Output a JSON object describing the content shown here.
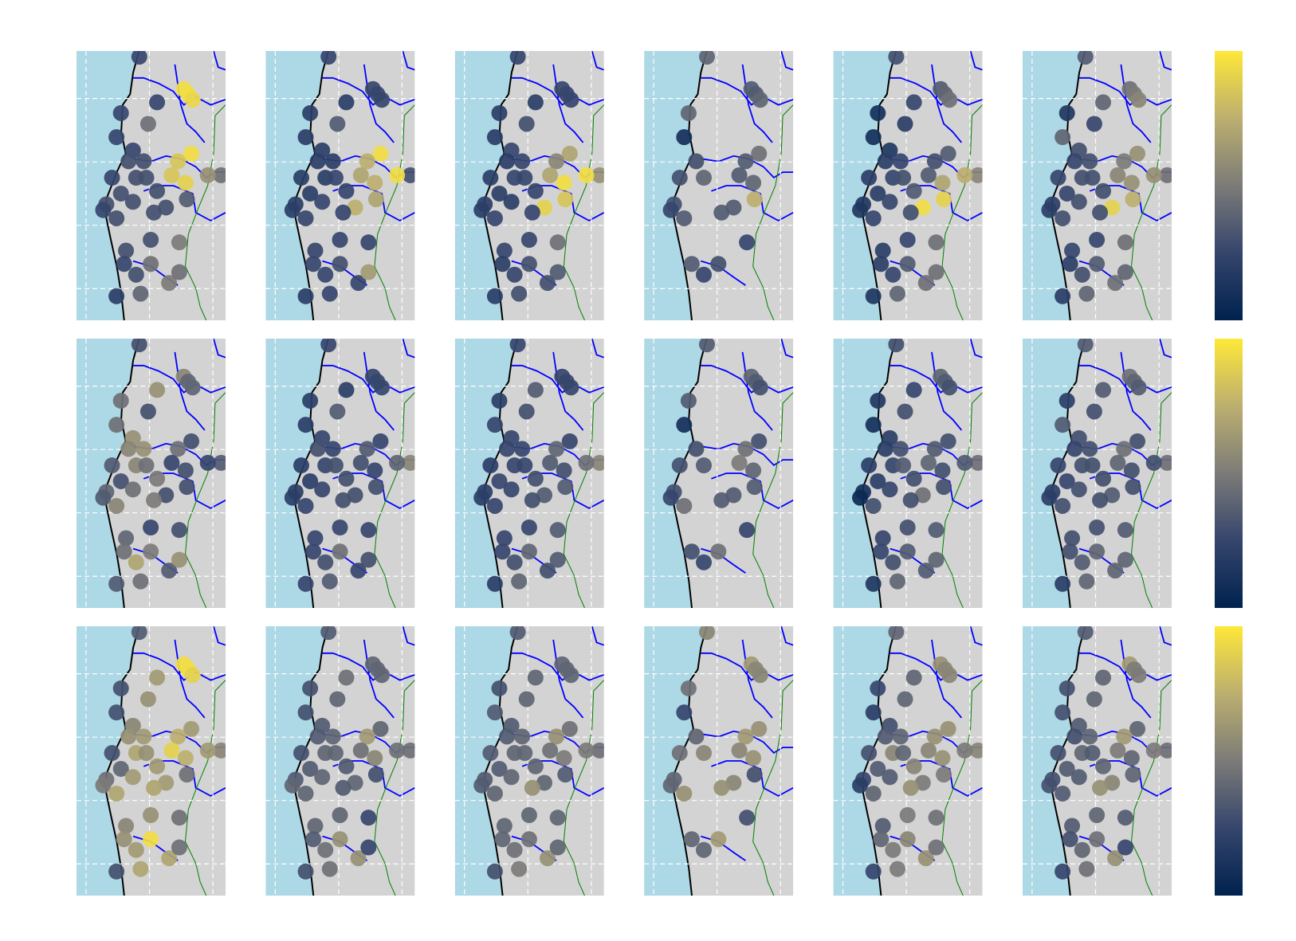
{
  "chart_data": {
    "type": "scatter-map",
    "colormap": "cividis",
    "clim": [
      0,
      1
    ],
    "xlim": [
      -81.15,
      -78.8
    ],
    "ylim": [
      -7.5,
      -3.25
    ],
    "xticks": [
      -81,
      -80,
      -79
    ],
    "yticks": [
      -4,
      -5,
      -6,
      -7
    ],
    "grid": true,
    "x": [
      -80.16,
      -79.46,
      -79.39,
      -79.32,
      -80.45,
      -79.88,
      -80.02,
      -80.52,
      -80.26,
      -80.33,
      -80.09,
      -79.34,
      -79.55,
      -80.59,
      -80.21,
      -80.05,
      -79.65,
      -79.43,
      -78.87,
      -79.08,
      -79.88,
      -80.45,
      -80.68,
      -80.26,
      -79.74,
      -80.73,
      -80.52,
      -79.93,
      -79.41,
      -80.37,
      -79.98,
      -79.53,
      -80.4,
      -79.98,
      -80.21,
      -79.69,
      -79.53,
      -80.52,
      -80.14
    ],
    "y": [
      -3.34,
      -3.85,
      -3.93,
      -4.02,
      -4.23,
      -4.06,
      -4.4,
      -4.61,
      -4.82,
      -4.99,
      -4.99,
      -4.87,
      -4.99,
      -5.25,
      -5.25,
      -5.25,
      -5.21,
      -5.33,
      -5.21,
      -5.21,
      -5.46,
      -5.5,
      -5.67,
      -5.63,
      -5.72,
      -5.76,
      -5.89,
      -5.8,
      -5.59,
      -6.4,
      -6.23,
      -6.27,
      -6.61,
      -6.61,
      -6.78,
      -6.91,
      -6.74,
      -7.12,
      -7.08
    ],
    "panels": [
      {
        "values": [
          0.25,
          0.95,
          0.95,
          0.92,
          0.25,
          0.25,
          0.45,
          0.25,
          0.25,
          0.3,
          0.3,
          0.95,
          0.85,
          0.25,
          0.3,
          0.3,
          0.85,
          0.9,
          0.45,
          0.6,
          0.3,
          0.3,
          0.3,
          0.3,
          0.3,
          0.25,
          0.3,
          0.3,
          0.35,
          0.3,
          0.3,
          0.5,
          0.25,
          0.45,
          0.3,
          0.5,
          0.45,
          0.2,
          0.4
        ]
      },
      {
        "values": [
          0.25,
          0.25,
          0.25,
          0.25,
          0.2,
          0.2,
          0.35,
          0.2,
          0.2,
          0.2,
          0.2,
          0.95,
          0.75,
          0.2,
          0.2,
          0.25,
          0.7,
          0.75,
          0.3,
          0.95,
          0.25,
          0.2,
          0.2,
          0.25,
          0.75,
          0.2,
          0.25,
          0.25,
          0.7,
          0.25,
          0.25,
          0.25,
          0.25,
          0.3,
          0.25,
          0.25,
          0.65,
          0.2,
          0.25
        ]
      },
      {
        "values": [
          0.25,
          0.25,
          0.25,
          0.25,
          0.2,
          0.2,
          0.3,
          0.2,
          0.25,
          0.2,
          0.25,
          0.7,
          0.55,
          0.2,
          0.25,
          0.25,
          0.7,
          0.95,
          0.6,
          0.95,
          0.25,
          0.2,
          0.2,
          0.2,
          0.9,
          0.2,
          0.25,
          0.25,
          0.85,
          0.25,
          0.25,
          0.45,
          0.2,
          0.3,
          0.25,
          0.3,
          0.35,
          0.2,
          0.3
        ]
      },
      {
        "values": [
          0.4,
          0.35,
          0.35,
          0.4,
          0.4,
          null,
          null,
          0.1,
          null,
          0.3,
          null,
          0.45,
          0.35,
          0.3,
          0.4,
          null,
          0.35,
          0.4,
          null,
          null,
          null,
          null,
          0.3,
          null,
          0.35,
          0.25,
          0.35,
          0.35,
          0.75,
          null,
          null,
          0.25,
          0.35,
          0.3,
          0.25,
          null,
          null,
          null,
          null
        ]
      },
      {
        "values": [
          0.3,
          0.35,
          0.4,
          0.45,
          0.1,
          0.25,
          0.2,
          0.1,
          0.15,
          0.2,
          0.25,
          0.35,
          0.3,
          0.2,
          0.25,
          0.3,
          0.35,
          0.7,
          0.55,
          0.75,
          0.35,
          0.2,
          0.15,
          0.25,
          0.95,
          0.15,
          0.25,
          0.3,
          0.9,
          0.2,
          0.25,
          0.45,
          0.2,
          0.35,
          0.25,
          0.45,
          0.45,
          0.15,
          0.4
        ]
      },
      {
        "values": [
          0.35,
          0.45,
          0.5,
          0.55,
          0.15,
          0.4,
          0.25,
          0.4,
          0.3,
          0.25,
          0.3,
          0.6,
          0.5,
          0.25,
          0.3,
          0.3,
          0.55,
          0.6,
          0.45,
          0.6,
          0.3,
          0.25,
          0.2,
          0.3,
          0.9,
          0.2,
          0.3,
          0.3,
          0.75,
          0.25,
          0.25,
          0.45,
          0.2,
          0.35,
          0.3,
          0.45,
          0.4,
          0.2,
          0.4
        ]
      },
      {
        "values": [
          0.3,
          0.55,
          0.4,
          0.4,
          0.45,
          0.6,
          0.3,
          0.45,
          0.6,
          0.55,
          0.6,
          0.3,
          0.45,
          0.35,
          0.55,
          0.45,
          0.25,
          0.3,
          0.35,
          0.25,
          0.5,
          0.3,
          0.4,
          0.45,
          0.3,
          0.35,
          0.55,
          0.5,
          0.3,
          0.4,
          0.25,
          0.3,
          0.45,
          0.5,
          0.7,
          0.35,
          0.6,
          0.35,
          0.45
        ]
      },
      {
        "values": [
          0.25,
          0.25,
          0.25,
          0.25,
          0.2,
          0.2,
          0.35,
          0.2,
          0.25,
          0.3,
          0.25,
          0.25,
          0.35,
          0.2,
          0.25,
          0.3,
          0.3,
          0.25,
          0.55,
          0.4,
          0.3,
          0.2,
          0.2,
          0.25,
          0.3,
          0.2,
          0.25,
          0.3,
          0.3,
          0.25,
          0.25,
          0.25,
          0.25,
          0.45,
          0.3,
          0.25,
          0.3,
          0.25,
          0.35
        ]
      },
      {
        "values": [
          0.25,
          0.25,
          0.25,
          0.25,
          0.2,
          0.35,
          0.3,
          0.25,
          0.25,
          0.25,
          0.25,
          0.25,
          0.4,
          0.2,
          0.25,
          0.25,
          0.35,
          0.3,
          0.55,
          0.45,
          0.3,
          0.25,
          0.2,
          0.25,
          0.35,
          0.2,
          0.25,
          0.3,
          0.35,
          0.25,
          0.25,
          0.35,
          0.25,
          0.4,
          0.3,
          0.3,
          0.35,
          0.2,
          0.4
        ]
      },
      {
        "values": [
          0.35,
          0.4,
          0.35,
          0.3,
          0.35,
          null,
          null,
          0.1,
          null,
          0.3,
          null,
          0.3,
          0.45,
          0.3,
          0.35,
          null,
          0.5,
          0.4,
          null,
          null,
          null,
          null,
          0.3,
          null,
          0.35,
          0.25,
          0.45,
          0.35,
          0.35,
          null,
          null,
          0.25,
          0.3,
          0.45,
          0.25,
          null,
          null,
          null,
          null
        ]
      },
      {
        "values": [
          0.3,
          0.4,
          0.35,
          0.3,
          0.15,
          0.25,
          0.3,
          0.1,
          0.2,
          0.2,
          0.3,
          0.3,
          0.35,
          0.2,
          0.25,
          0.35,
          0.4,
          0.3,
          0.45,
          0.35,
          0.3,
          0.2,
          0.1,
          0.25,
          0.45,
          0.05,
          0.3,
          0.3,
          0.3,
          0.25,
          0.3,
          0.35,
          0.25,
          0.35,
          0.3,
          0.35,
          0.4,
          0.15,
          0.4
        ]
      },
      {
        "values": [
          0.35,
          0.45,
          0.4,
          0.35,
          0.2,
          0.35,
          0.3,
          0.35,
          0.3,
          0.25,
          0.3,
          0.3,
          0.45,
          0.25,
          0.3,
          0.3,
          0.4,
          0.3,
          0.45,
          0.3,
          0.3,
          0.25,
          0.2,
          0.3,
          0.35,
          0.2,
          0.3,
          0.3,
          0.3,
          0.3,
          0.3,
          0.35,
          0.3,
          0.4,
          0.35,
          0.4,
          0.4,
          0.2,
          0.4
        ]
      },
      {
        "values": [
          0.35,
          0.95,
          0.95,
          0.9,
          0.3,
          0.65,
          0.6,
          0.3,
          0.55,
          0.6,
          0.65,
          0.65,
          0.75,
          0.3,
          0.7,
          0.6,
          0.9,
          0.75,
          0.55,
          0.65,
          0.65,
          0.4,
          0.45,
          0.65,
          0.65,
          0.5,
          0.7,
          0.7,
          0.45,
          0.55,
          0.6,
          0.45,
          0.6,
          0.95,
          0.65,
          0.7,
          0.45,
          0.3,
          0.7
        ]
      },
      {
        "values": [
          0.35,
          0.4,
          0.4,
          0.4,
          0.3,
          0.45,
          0.4,
          0.3,
          0.35,
          0.35,
          0.4,
          0.4,
          0.65,
          0.3,
          0.4,
          0.4,
          0.45,
          0.55,
          0.45,
          0.45,
          0.35,
          0.35,
          0.35,
          0.4,
          0.4,
          0.4,
          0.4,
          0.35,
          0.3,
          0.4,
          0.4,
          0.25,
          0.35,
          0.6,
          0.45,
          0.6,
          0.25,
          0.3,
          0.45
        ]
      },
      {
        "values": [
          0.35,
          0.4,
          0.4,
          0.4,
          0.3,
          0.4,
          0.4,
          0.35,
          0.35,
          0.35,
          0.4,
          0.45,
          0.6,
          0.35,
          0.4,
          0.4,
          0.45,
          0.5,
          0.45,
          0.5,
          0.4,
          0.35,
          0.35,
          0.4,
          0.4,
          0.35,
          0.4,
          0.6,
          0.35,
          0.4,
          0.4,
          0.4,
          0.4,
          0.45,
          0.45,
          0.6,
          0.4,
          0.3,
          0.5
        ]
      },
      {
        "values": [
          0.55,
          0.65,
          0.55,
          0.55,
          0.45,
          null,
          null,
          0.25,
          null,
          0.4,
          null,
          0.6,
          0.65,
          0.45,
          0.55,
          null,
          0.55,
          0.6,
          null,
          null,
          null,
          null,
          0.4,
          null,
          0.55,
          0.4,
          0.6,
          0.6,
          0.3,
          null,
          null,
          0.3,
          0.4,
          0.65,
          0.4,
          null,
          null,
          null,
          null
        ]
      },
      {
        "values": [
          0.4,
          0.6,
          0.55,
          0.55,
          0.25,
          0.4,
          0.4,
          0.2,
          0.3,
          0.35,
          0.4,
          0.6,
          0.6,
          0.3,
          0.55,
          0.4,
          0.55,
          0.6,
          0.55,
          0.5,
          0.55,
          0.35,
          0.25,
          0.35,
          0.5,
          0.2,
          0.4,
          0.6,
          0.5,
          0.35,
          0.5,
          0.45,
          0.4,
          0.55,
          0.5,
          0.6,
          0.45,
          0.25,
          0.5
        ]
      },
      {
        "values": [
          0.35,
          0.65,
          0.5,
          0.5,
          0.3,
          0.4,
          0.4,
          0.3,
          0.35,
          0.3,
          0.4,
          0.4,
          0.65,
          0.3,
          0.4,
          0.35,
          0.5,
          0.4,
          0.45,
          0.5,
          0.4,
          0.35,
          0.3,
          0.35,
          0.55,
          0.3,
          0.35,
          0.6,
          0.4,
          0.35,
          0.4,
          0.35,
          0.3,
          0.45,
          0.4,
          0.6,
          0.25,
          0.25,
          0.45
        ]
      }
    ]
  }
}
